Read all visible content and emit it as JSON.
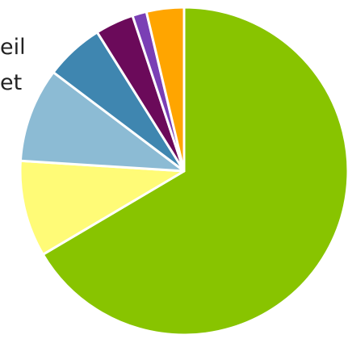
{
  "chart_data": {
    "type": "pie",
    "start_angle_deg": 0,
    "direction": "clockwise",
    "slices": [
      {
        "value": 66.5,
        "color": "#88c400"
      },
      {
        "value": 9.5,
        "color": "#fffb77"
      },
      {
        "value": 9.3,
        "color": "#8cbbd4"
      },
      {
        "value": 5.8,
        "color": "#3f86b0"
      },
      {
        "value": 3.8,
        "color": "#6b0a5a"
      },
      {
        "value": 1.4,
        "color": "#7a3fb5"
      },
      {
        "value": 3.7,
        "color": "#ffa500"
      }
    ],
    "separator_color": "#ffffff"
  },
  "legend_fragments": [
    {
      "text": "eil"
    },
    {
      "text": "et"
    }
  ]
}
